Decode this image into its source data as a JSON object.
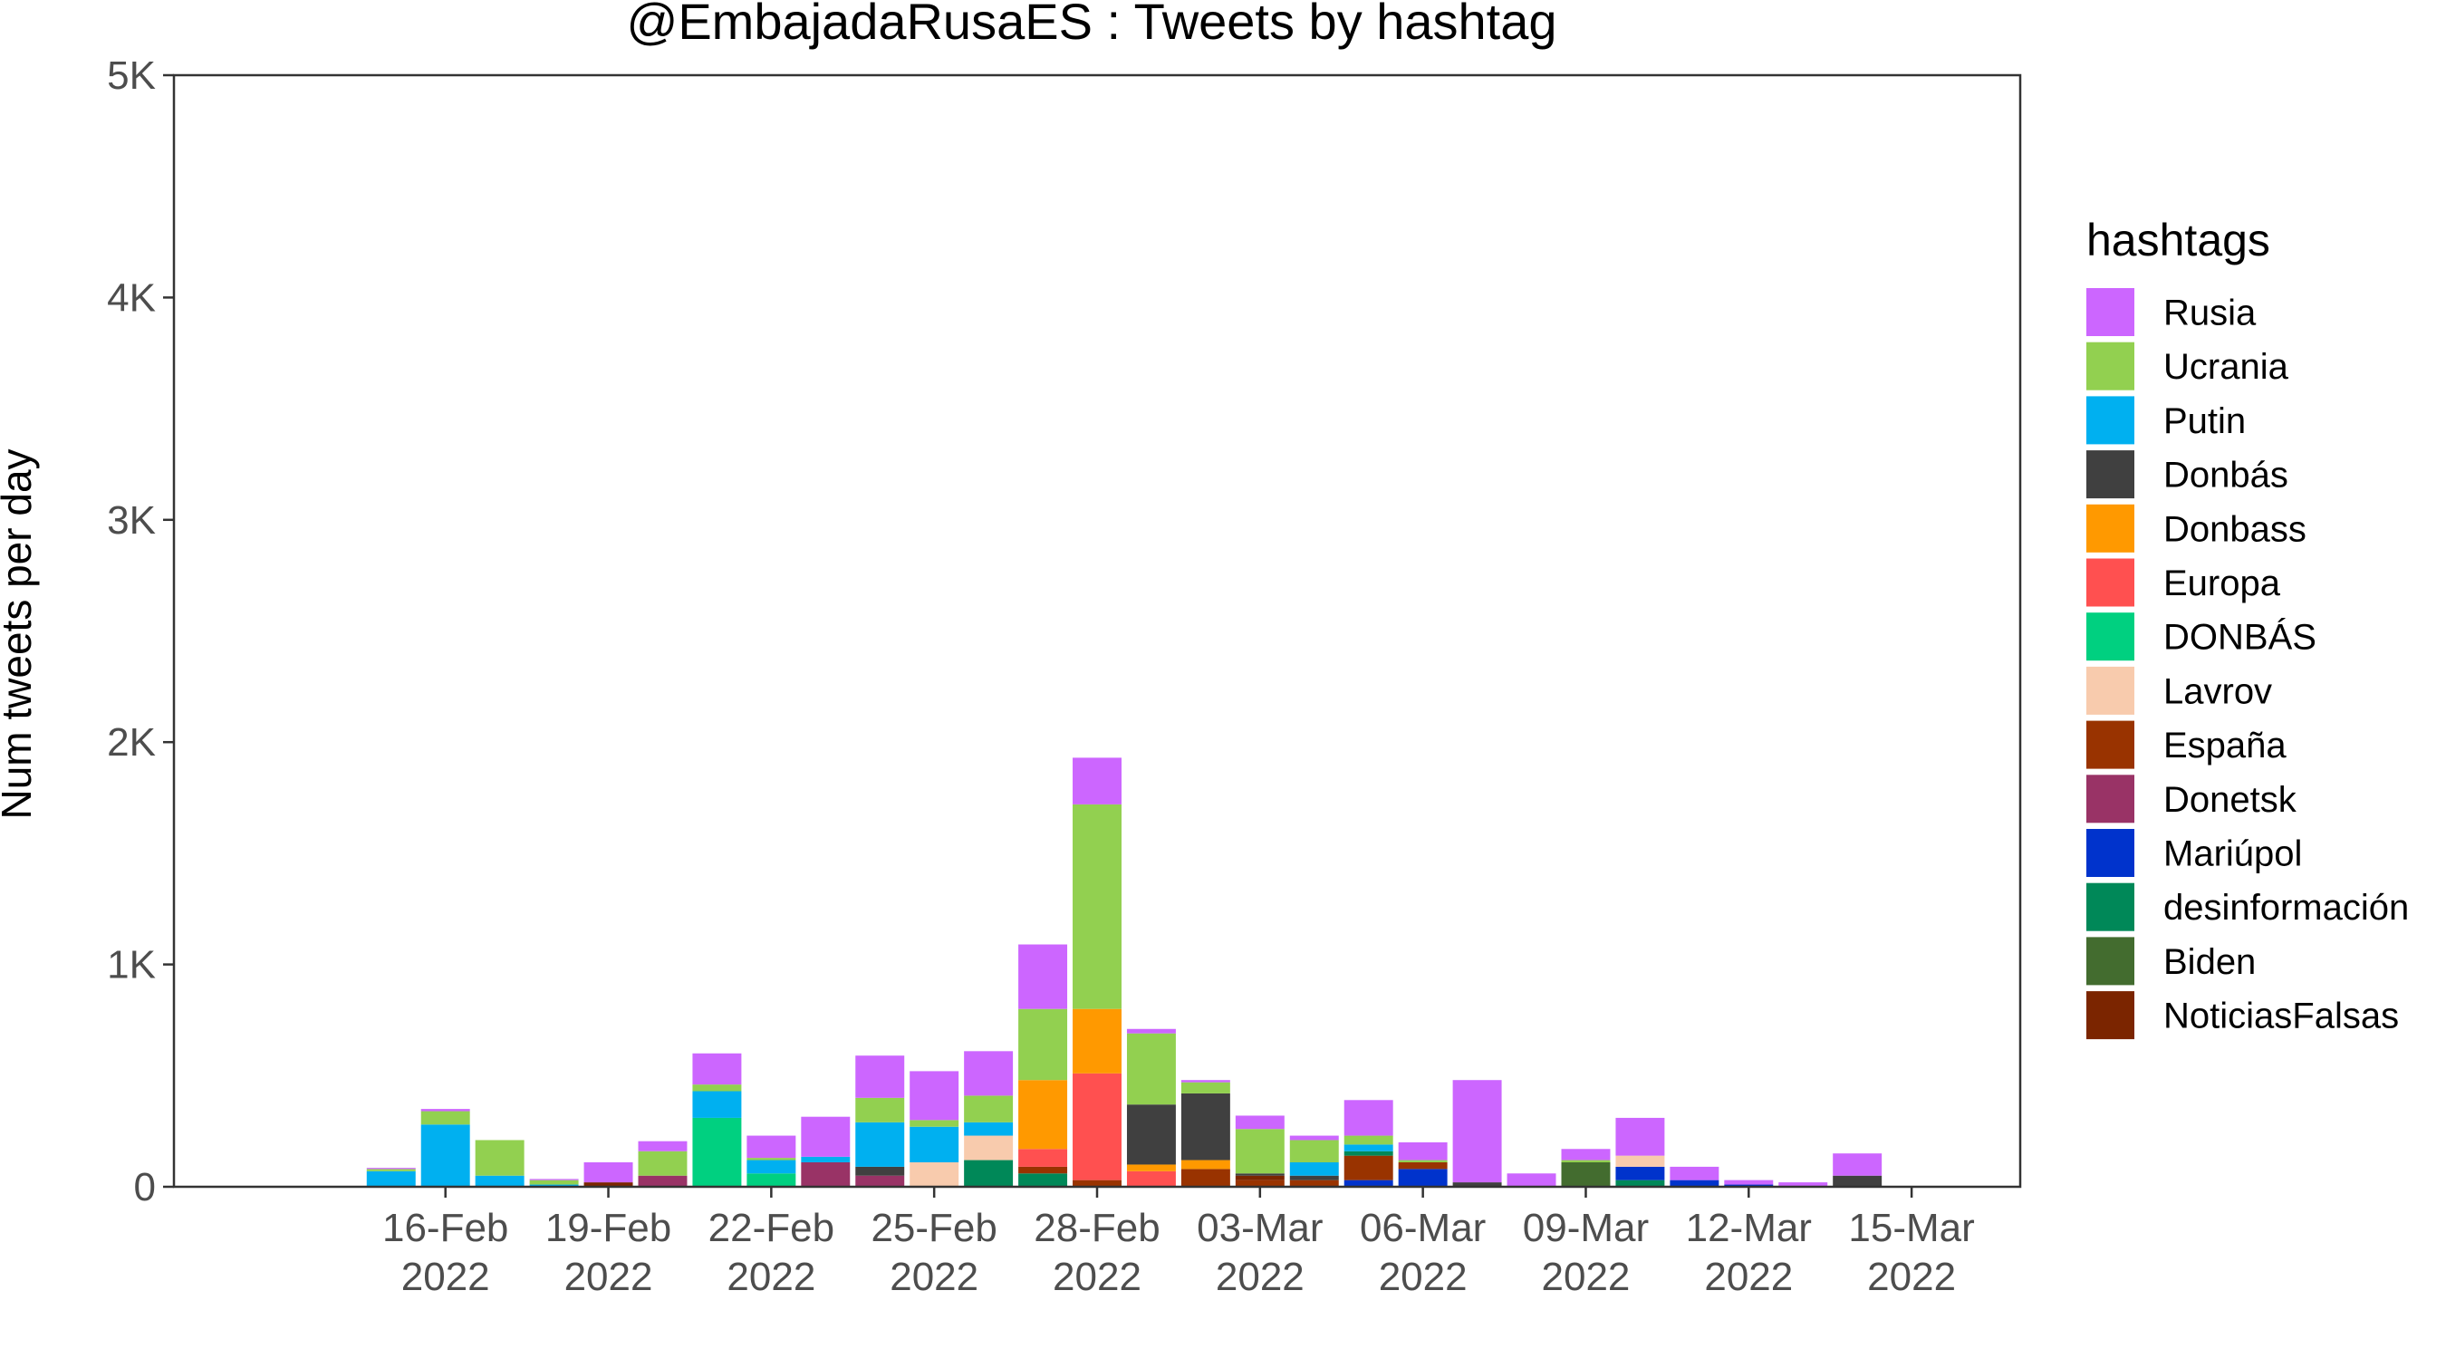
{
  "chart_data": {
    "type": "bar",
    "stacked": true,
    "title": "@EmbajadaRusaES : Tweets by hashtag",
    "xlabel": "",
    "ylabel": "Num tweets per day",
    "ylim": [
      0,
      5000
    ],
    "yticks": [
      {
        "value": 0,
        "label": "0"
      },
      {
        "value": 1000,
        "label": "1K"
      },
      {
        "value": 2000,
        "label": "2K"
      },
      {
        "value": 3000,
        "label": "3K"
      },
      {
        "value": 4000,
        "label": "4K"
      },
      {
        "value": 5000,
        "label": "5K"
      }
    ],
    "xlim": [
      "2022-02-11",
      "2022-03-17"
    ],
    "xticks": [
      {
        "date": "2022-02-16",
        "line1": "16-Feb",
        "line2": "2022"
      },
      {
        "date": "2022-02-19",
        "line1": "19-Feb",
        "line2": "2022"
      },
      {
        "date": "2022-02-22",
        "line1": "22-Feb",
        "line2": "2022"
      },
      {
        "date": "2022-02-25",
        "line1": "25-Feb",
        "line2": "2022"
      },
      {
        "date": "2022-02-28",
        "line1": "28-Feb",
        "line2": "2022"
      },
      {
        "date": "2022-03-03",
        "line1": "03-Mar",
        "line2": "2022"
      },
      {
        "date": "2022-03-06",
        "line1": "06-Mar",
        "line2": "2022"
      },
      {
        "date": "2022-03-09",
        "line1": "09-Mar",
        "line2": "2022"
      },
      {
        "date": "2022-03-12",
        "line1": "12-Mar",
        "line2": "2022"
      },
      {
        "date": "2022-03-15",
        "line1": "15-Mar",
        "line2": "2022"
      }
    ],
    "grid": false,
    "legend_title": "hashtags",
    "legend_position": "right",
    "series": [
      {
        "name": "Rusia",
        "color": "#CC66FF"
      },
      {
        "name": "Ucrania",
        "color": "#92D050"
      },
      {
        "name": "Putin",
        "color": "#00B0F0"
      },
      {
        "name": "Donbás",
        "color": "#404040"
      },
      {
        "name": "Donbass",
        "color": "#FF9900"
      },
      {
        "name": "Europa",
        "color": "#FF5050"
      },
      {
        "name": "DONBÁS",
        "color": "#00D080"
      },
      {
        "name": "Lavrov",
        "color": "#F8CBAD"
      },
      {
        "name": "España",
        "color": "#993300"
      },
      {
        "name": "Donetsk",
        "color": "#993366"
      },
      {
        "name": "Mariúpol",
        "color": "#0033CC"
      },
      {
        "name": "desinformación",
        "color": "#008858"
      },
      {
        "name": "Biden",
        "color": "#436C2F"
      },
      {
        "name": "NoticiasFalsas",
        "color": "#7B2500"
      }
    ],
    "bars": [
      {
        "date": "2022-02-15",
        "segments": [
          [
            "Putin",
            70
          ],
          [
            "Ucrania",
            10
          ],
          [
            "Rusia",
            5
          ]
        ]
      },
      {
        "date": "2022-02-16",
        "segments": [
          [
            "Putin",
            280
          ],
          [
            "Ucrania",
            60
          ],
          [
            "Rusia",
            10
          ]
        ]
      },
      {
        "date": "2022-02-17",
        "segments": [
          [
            "Putin",
            50
          ],
          [
            "Ucrania",
            160
          ]
        ]
      },
      {
        "date": "2022-02-18",
        "segments": [
          [
            "Putin",
            10
          ],
          [
            "Ucrania",
            20
          ],
          [
            "Rusia",
            5
          ]
        ]
      },
      {
        "date": "2022-02-19",
        "segments": [
          [
            "NoticiasFalsas",
            20
          ],
          [
            "Rusia",
            90
          ]
        ]
      },
      {
        "date": "2022-02-20",
        "segments": [
          [
            "Donetsk",
            50
          ],
          [
            "Ucrania",
            110
          ],
          [
            "Rusia",
            45
          ]
        ]
      },
      {
        "date": "2022-02-21",
        "segments": [
          [
            "DONBÁS",
            310
          ],
          [
            "Putin",
            120
          ],
          [
            "Ucrania",
            30
          ],
          [
            "Rusia",
            140
          ]
        ]
      },
      {
        "date": "2022-02-22",
        "segments": [
          [
            "DONBÁS",
            60
          ],
          [
            "Putin",
            60
          ],
          [
            "Ucrania",
            10
          ],
          [
            "Rusia",
            100
          ]
        ]
      },
      {
        "date": "2022-02-23",
        "segments": [
          [
            "Donetsk",
            110
          ],
          [
            "Putin",
            25
          ],
          [
            "Rusia",
            180
          ]
        ]
      },
      {
        "date": "2022-02-24",
        "segments": [
          [
            "Donetsk",
            50
          ],
          [
            "Donbás",
            40
          ],
          [
            "Putin",
            200
          ],
          [
            "Ucrania",
            110
          ],
          [
            "Rusia",
            190
          ]
        ]
      },
      {
        "date": "2022-02-25",
        "segments": [
          [
            "Lavrov",
            110
          ],
          [
            "Putin",
            160
          ],
          [
            "Ucrania",
            30
          ],
          [
            "Rusia",
            220
          ]
        ]
      },
      {
        "date": "2022-02-26",
        "segments": [
          [
            "desinformación",
            120
          ],
          [
            "Lavrov",
            110
          ],
          [
            "Putin",
            60
          ],
          [
            "Ucrania",
            120
          ],
          [
            "Rusia",
            200
          ]
        ]
      },
      {
        "date": "2022-02-27",
        "segments": [
          [
            "desinformación",
            60
          ],
          [
            "España",
            30
          ],
          [
            "Europa",
            80
          ],
          [
            "Donbass",
            310
          ],
          [
            "Ucrania",
            320
          ],
          [
            "Rusia",
            290
          ]
        ]
      },
      {
        "date": "2022-02-28",
        "segments": [
          [
            "España",
            30
          ],
          [
            "Europa",
            480
          ],
          [
            "Donbass",
            290
          ],
          [
            "Ucrania",
            920
          ],
          [
            "Rusia",
            210
          ]
        ]
      },
      {
        "date": "2022-03-01",
        "segments": [
          [
            "Europa",
            70
          ],
          [
            "Donbass",
            30
          ],
          [
            "Donbás",
            270
          ],
          [
            "Ucrania",
            320
          ],
          [
            "Rusia",
            20
          ]
        ]
      },
      {
        "date": "2022-03-02",
        "segments": [
          [
            "España",
            80
          ],
          [
            "Donbass",
            40
          ],
          [
            "Donbás",
            300
          ],
          [
            "Ucrania",
            50
          ],
          [
            "Rusia",
            10
          ]
        ]
      },
      {
        "date": "2022-03-03",
        "segments": [
          [
            "España",
            30
          ],
          [
            "NoticiasFalsas",
            20
          ],
          [
            "Donbás",
            10
          ],
          [
            "Ucrania",
            200
          ],
          [
            "Rusia",
            60
          ]
        ]
      },
      {
        "date": "2022-03-04",
        "segments": [
          [
            "España",
            30
          ],
          [
            "Donbás",
            20
          ],
          [
            "Putin",
            60
          ],
          [
            "Ucrania",
            100
          ],
          [
            "Rusia",
            20
          ]
        ]
      },
      {
        "date": "2022-03-05",
        "segments": [
          [
            "Mariúpol",
            30
          ],
          [
            "España",
            110
          ],
          [
            "desinformación",
            20
          ],
          [
            "Putin",
            30
          ],
          [
            "Ucrania",
            40
          ],
          [
            "Rusia",
            160
          ]
        ]
      },
      {
        "date": "2022-03-06",
        "segments": [
          [
            "Mariúpol",
            80
          ],
          [
            "España",
            30
          ],
          [
            "Ucrania",
            10
          ],
          [
            "Rusia",
            80
          ]
        ]
      },
      {
        "date": "2022-03-07",
        "segments": [
          [
            "Donbás",
            20
          ],
          [
            "Rusia",
            460
          ]
        ]
      },
      {
        "date": "2022-03-08",
        "segments": [
          [
            "Rusia",
            60
          ]
        ]
      },
      {
        "date": "2022-03-09",
        "segments": [
          [
            "Biden",
            110
          ],
          [
            "Ucrania",
            10
          ],
          [
            "Rusia",
            50
          ]
        ]
      },
      {
        "date": "2022-03-10",
        "segments": [
          [
            "desinformación",
            30
          ],
          [
            "Mariúpol",
            60
          ],
          [
            "Lavrov",
            50
          ],
          [
            "Rusia",
            170
          ]
        ]
      },
      {
        "date": "2022-03-11",
        "segments": [
          [
            "Mariúpol",
            30
          ],
          [
            "Rusia",
            60
          ]
        ]
      },
      {
        "date": "2022-03-12",
        "segments": [
          [
            "Mariúpol",
            10
          ],
          [
            "Rusia",
            20
          ]
        ]
      },
      {
        "date": "2022-03-13",
        "segments": [
          [
            "Rusia",
            20
          ]
        ]
      },
      {
        "date": "2022-03-14",
        "segments": [
          [
            "Donbás",
            50
          ],
          [
            "Rusia",
            100
          ]
        ]
      }
    ]
  }
}
